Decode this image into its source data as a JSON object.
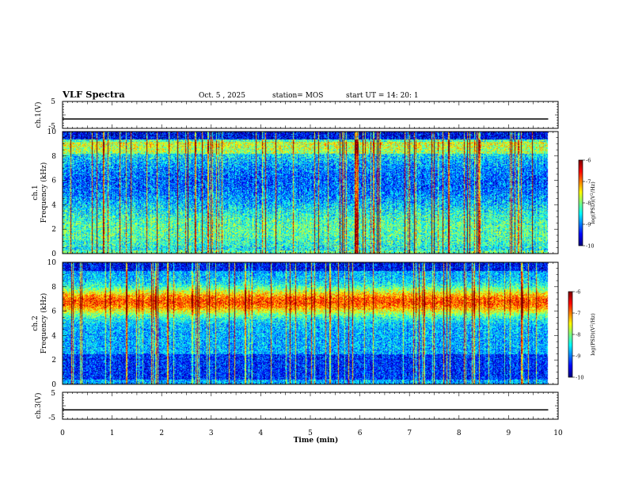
{
  "header": {
    "title": "VLF Spectra",
    "date": "Oct. 5  , 2025",
    "station": "station= MOS",
    "start": "start  UT  =   14: 20: 1"
  },
  "chart_data": [
    {
      "type": "line",
      "panel": "ch1-voltage",
      "ylabel": "ch.1(V)",
      "ylim": [
        -5,
        5
      ],
      "y_ticks": [
        "5",
        "-5"
      ],
      "x": [
        0,
        9.8
      ],
      "values": [
        -1.5,
        -1.5
      ],
      "line_color": "#000000"
    },
    {
      "type": "heatmap",
      "panel": "ch1-spectrogram",
      "ylabel": "ch.1\nFrequency  (kHz)",
      "ylim": [
        0,
        10
      ],
      "y_ticks": [
        "0",
        "2",
        "4",
        "6",
        "8",
        "10"
      ],
      "xlim": [
        0,
        10
      ],
      "data_xmax": 9.8,
      "colorbar": {
        "label": "log(PSD)(V²/Hz)",
        "range": [
          -10,
          -6
        ],
        "ticks": [
          "-6",
          "-7",
          "-8",
          "-9",
          "-10"
        ]
      },
      "profile": "broadband-sferics"
    },
    {
      "type": "heatmap",
      "panel": "ch2-spectrogram",
      "ylabel": "ch.2\nFrequency  (kHz)",
      "ylim": [
        0,
        10
      ],
      "y_ticks": [
        "0",
        "2",
        "4",
        "6",
        "8",
        "10"
      ],
      "xlim": [
        0,
        10
      ],
      "data_xmax": 9.8,
      "colorbar": {
        "label": "log(PSD)(V²/Hz)",
        "range": [
          -10,
          -6
        ],
        "ticks": [
          "-6",
          "-7",
          "-8",
          "-9",
          "-10"
        ]
      },
      "profile": "band-6-8kHz"
    },
    {
      "type": "line",
      "panel": "ch3-voltage",
      "ylabel": "ch.3(V)",
      "ylim": [
        -5,
        5
      ],
      "y_ticks": [
        "5",
        "-5"
      ],
      "x": [
        0,
        9.8
      ],
      "values": [
        -1.5,
        -1.5
      ],
      "line_color": "#000000"
    }
  ],
  "x_axis": {
    "label": "Time  (min)",
    "ticks": [
      "0",
      "1",
      "2",
      "3",
      "4",
      "5",
      "6",
      "7",
      "8",
      "9",
      "10"
    ]
  }
}
